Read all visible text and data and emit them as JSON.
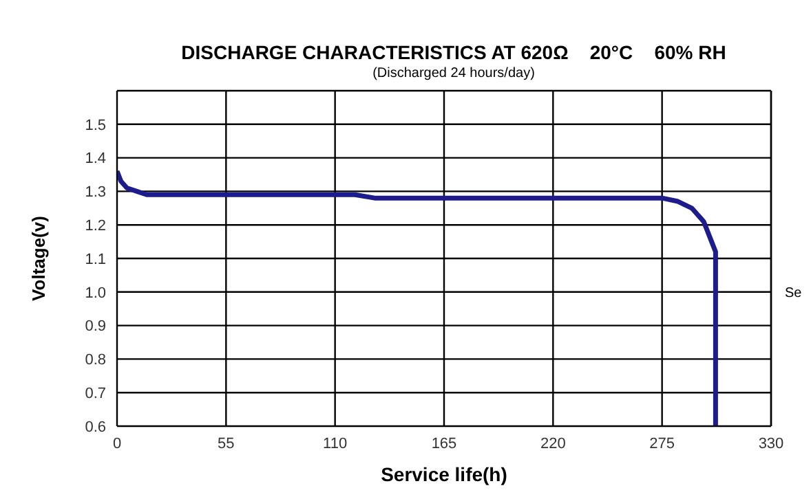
{
  "chart_data": {
    "type": "line",
    "title": "DISCHARGE CHARACTERISTICS AT 620Ω    20°C    60% RH",
    "subtitle": "(Discharged 24 hours/day)",
    "xlabel": "Service life(h)",
    "ylabel": "Voltage(v)",
    "annotations": [
      "Se"
    ],
    "x": [
      0,
      2,
      5,
      10,
      15,
      60,
      120,
      130,
      200,
      275,
      283,
      290,
      296,
      300,
      302,
      302
    ],
    "series": [
      {
        "color": "#1c1c8c",
        "values": [
          1.36,
          1.33,
          1.31,
          1.3,
          1.29,
          1.29,
          1.29,
          1.28,
          1.28,
          1.28,
          1.27,
          1.25,
          1.21,
          1.15,
          1.12,
          0.6
        ]
      }
    ],
    "xlim": [
      0,
      330
    ],
    "xticks": [
      0,
      55,
      110,
      165,
      220,
      275,
      330
    ],
    "ylim": [
      0.6,
      1.6
    ],
    "yticks": [
      0.6,
      0.7,
      0.8,
      0.9,
      {
        "value": 1,
        "label": "1.0"
      },
      1.1,
      1.2,
      1.3,
      1.4,
      1.5
    ],
    "grid": true,
    "legend": false,
    "marker": "none",
    "line_style": "solid"
  }
}
